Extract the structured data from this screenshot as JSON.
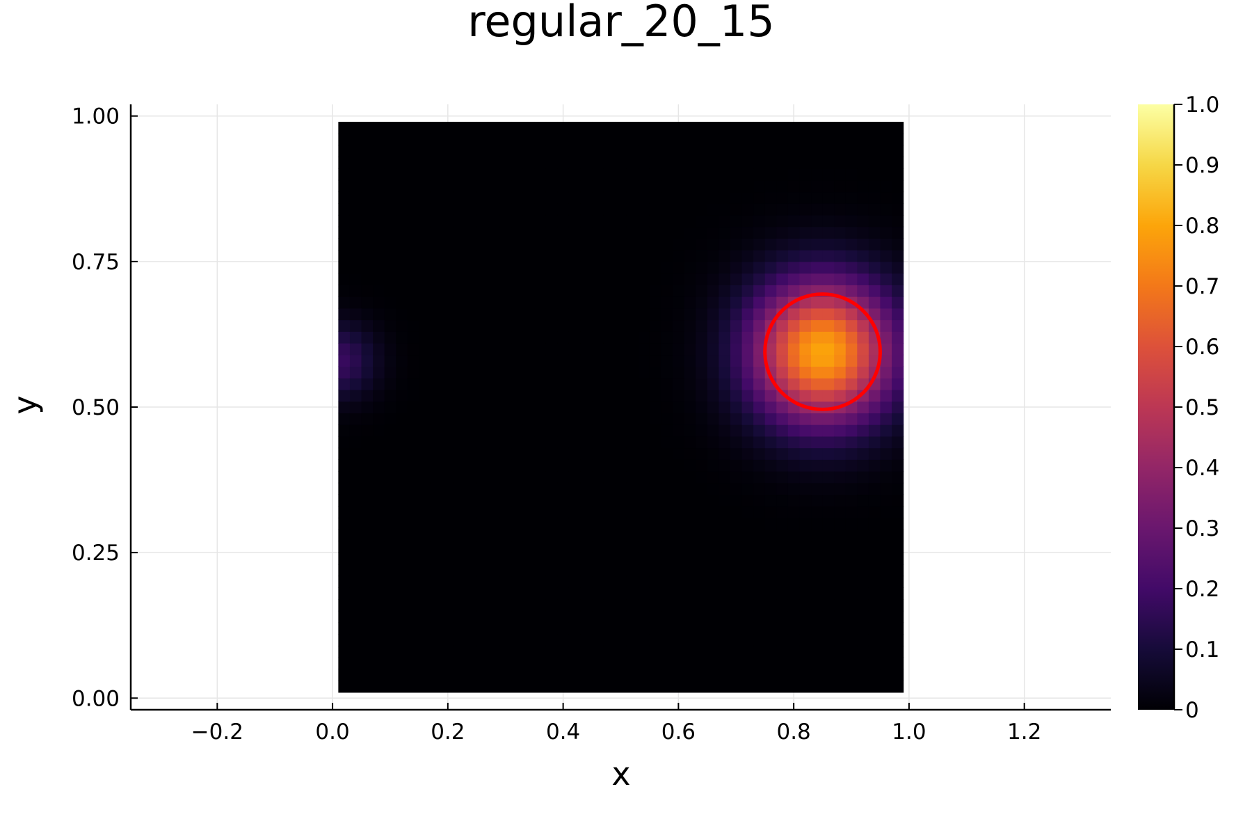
{
  "chart_data": {
    "type": "heatmap",
    "title": "regular_20_15",
    "xlabel": "x",
    "ylabel": "y",
    "xlim": [
      -0.35,
      1.35
    ],
    "ylim": [
      -0.02,
      1.02
    ],
    "xticks": [
      -0.2,
      0.0,
      0.2,
      0.4,
      0.6,
      0.8,
      1.0,
      1.2
    ],
    "xtick_labels": [
      "−0.2",
      "0.0",
      "0.2",
      "0.4",
      "0.6",
      "0.8",
      "1.0",
      "1.2"
    ],
    "yticks": [
      0.0,
      0.25,
      0.5,
      0.75,
      1.0
    ],
    "ytick_labels": [
      "0.00",
      "0.25",
      "0.50",
      "0.75",
      "1.00"
    ],
    "grid": true,
    "colormap": "inferno",
    "clim": [
      0,
      1.0
    ],
    "colorbar_ticks": [
      0,
      0.1,
      0.2,
      0.3,
      0.4,
      0.5,
      0.6,
      0.7,
      0.8,
      0.9,
      1.0
    ],
    "colorbar_tick_labels": [
      "0",
      "0.1",
      "0.2",
      "0.3",
      "0.4",
      "0.5",
      "0.6",
      "0.7",
      "0.8",
      "0.9",
      "1.0"
    ],
    "heatmap_extent": {
      "x": [
        0.01,
        0.99
      ],
      "y": [
        0.01,
        0.99
      ]
    },
    "grid_size": [
      49,
      49
    ],
    "blobs": [
      {
        "cx": 0.85,
        "cy": 0.595,
        "amplitude": 0.8,
        "sigma": 0.085
      },
      {
        "cx": 0.01,
        "cy": 0.58,
        "amplitude": 0.18,
        "sigma": 0.045
      }
    ],
    "circle": {
      "cx": 0.85,
      "cy": 0.595,
      "r": 0.1,
      "color": "#ff0000"
    }
  }
}
